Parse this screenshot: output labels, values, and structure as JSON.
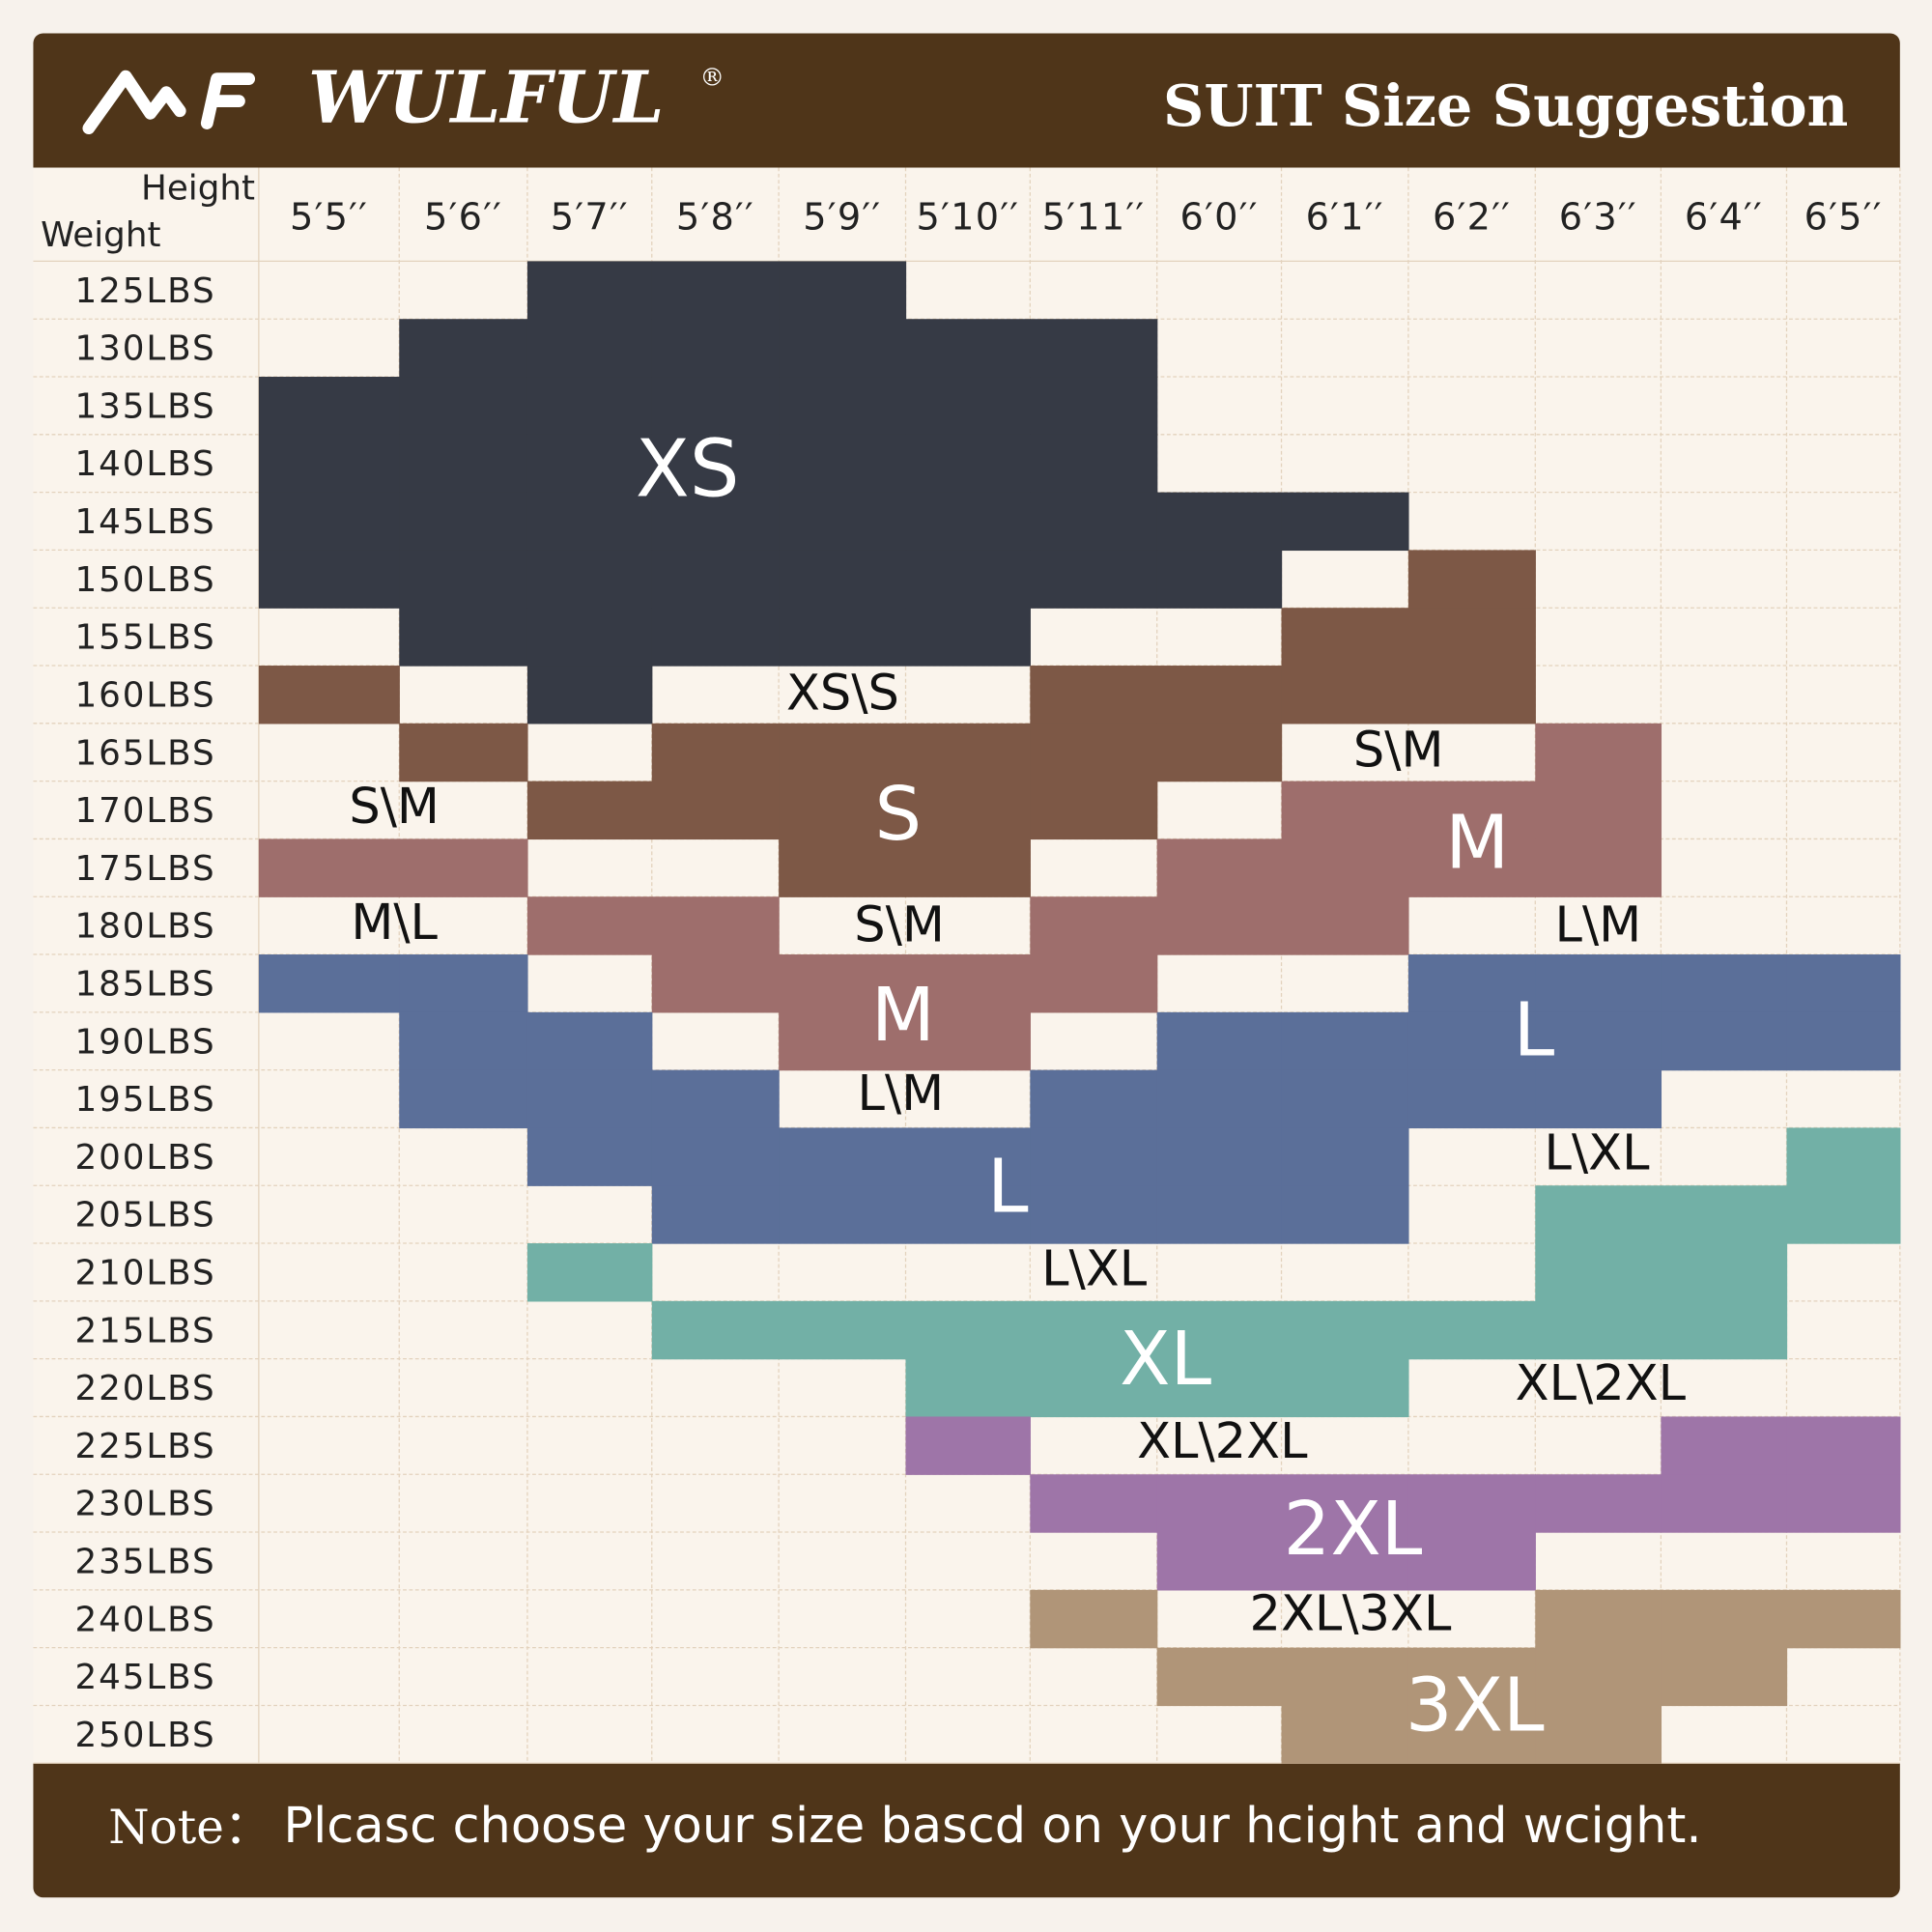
{
  "header": {
    "brand": "WULFUL",
    "registered": "®",
    "title": "SUIT Size Suggestion"
  },
  "table": {
    "corner_height": "Height",
    "corner_weight": "Weight",
    "heights": [
      "5′5′′",
      "5′6′′",
      "5′7′′",
      "5′8′′",
      "5′9′′",
      "5′10′′",
      "5′11′′",
      "6′0′′",
      "6′1′′",
      "6′2′′",
      "6′3′′",
      "6′4′′",
      "6′5′′"
    ],
    "weights": [
      "125LBS",
      "130LBS",
      "135LBS",
      "140LBS",
      "145LBS",
      "150LBS",
      "155LBS",
      "160LBS",
      "165LBS",
      "170LBS",
      "175LBS",
      "180LBS",
      "185LBS",
      "190LBS",
      "195LBS",
      "200LBS",
      "205LBS",
      "210LBS",
      "215LBS",
      "220LBS",
      "225LBS",
      "230LBS",
      "235LBS",
      "240LBS",
      "245LBS",
      "250LBS"
    ],
    "zone_labels": [
      "XS",
      "XS\\S",
      "S\\M",
      "S\\M",
      "S",
      "M",
      "M\\L",
      "S\\M",
      "L\\M",
      "M",
      "L",
      "L\\M",
      "L\\XL",
      "L",
      "L\\XL",
      "XL",
      "XL\\2XL",
      "XL\\2XL",
      "2XL",
      "2XL\\3XL",
      "3XL"
    ]
  },
  "footer": {
    "note_prefix": "Note：",
    "note": "Plcasc choose your size bascd on your hcight and wcight."
  }
}
